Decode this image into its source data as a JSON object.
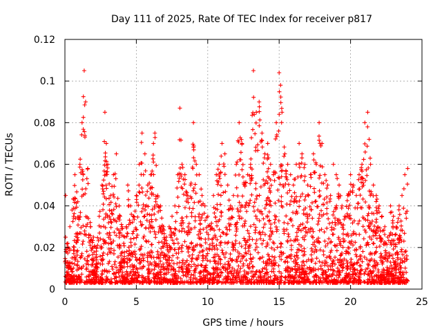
{
  "chart_data": {
    "type": "scatter",
    "title": "Day 111 of 2025, Rate Of TEC Index for receiver p817",
    "xlabel": "GPS time / hours",
    "ylabel": "ROTI / TECUs",
    "xlim": [
      0,
      25
    ],
    "ylim": [
      0,
      0.12
    ],
    "x_ticks": [
      "0",
      "5",
      "10",
      "15",
      "20",
      "25"
    ],
    "y_ticks": [
      "0",
      "0.02",
      "0.04",
      "0.06",
      "0.08",
      "0.1",
      "0.12"
    ],
    "grid": true,
    "marker": "+",
    "color": "#ff0000",
    "points_x": [
      0.05,
      0.2,
      0.35,
      0.5,
      0.7,
      0.9,
      1.05,
      1.2,
      1.35,
      1.45,
      1.6,
      1.8,
      2.0,
      2.2,
      2.4,
      2.6,
      2.8,
      2.9,
      3.0,
      3.2,
      3.4,
      3.6,
      3.8,
      4.0,
      4.2,
      4.4,
      4.6,
      4.8,
      5.0,
      5.2,
      5.4,
      5.5,
      5.6,
      5.8,
      6.0,
      6.2,
      6.3,
      6.5,
      6.7,
      6.9,
      7.1,
      7.3,
      7.5,
      7.7,
      7.9,
      8.05,
      8.2,
      8.4,
      8.6,
      8.8,
      9.0,
      9.2,
      9.4,
      9.6,
      9.8,
      10.0,
      10.2,
      10.4,
      10.6,
      10.8,
      11.0,
      11.2,
      11.4,
      11.6,
      11.8,
      12.0,
      12.2,
      12.4,
      12.6,
      12.8,
      13.0,
      13.2,
      13.4,
      13.6,
      13.8,
      14.0,
      14.2,
      14.4,
      14.6,
      14.8,
      15.0,
      15.1,
      15.2,
      15.4,
      15.6,
      15.8,
      16.0,
      16.2,
      16.4,
      16.6,
      16.8,
      17.0,
      17.2,
      17.4,
      17.6,
      17.8,
      18.0,
      18.2,
      18.4,
      18.6,
      18.8,
      19.0,
      19.2,
      19.4,
      19.6,
      19.8,
      20.0,
      20.2,
      20.4,
      20.6,
      20.8,
      21.0,
      21.2,
      21.3,
      21.4,
      21.6,
      21.8,
      22.0,
      22.2,
      22.4,
      22.6,
      22.8,
      23.0,
      23.2,
      23.4,
      23.6,
      23.8,
      24.0
    ],
    "points_y": [
      0.045,
      0.022,
      0.03,
      0.038,
      0.055,
      0.042,
      0.06,
      0.08,
      0.105,
      0.09,
      0.058,
      0.03,
      0.025,
      0.02,
      0.035,
      0.05,
      0.085,
      0.07,
      0.06,
      0.045,
      0.055,
      0.065,
      0.04,
      0.03,
      0.025,
      0.05,
      0.04,
      0.035,
      0.045,
      0.06,
      0.075,
      0.055,
      0.065,
      0.05,
      0.055,
      0.07,
      0.075,
      0.045,
      0.04,
      0.03,
      0.025,
      0.03,
      0.035,
      0.04,
      0.055,
      0.087,
      0.06,
      0.055,
      0.045,
      0.05,
      0.08,
      0.06,
      0.055,
      0.045,
      0.04,
      0.035,
      0.03,
      0.045,
      0.055,
      0.06,
      0.07,
      0.065,
      0.05,
      0.04,
      0.045,
      0.06,
      0.08,
      0.07,
      0.05,
      0.055,
      0.06,
      0.105,
      0.085,
      0.09,
      0.075,
      0.065,
      0.07,
      0.06,
      0.055,
      0.08,
      0.104,
      0.098,
      0.085,
      0.065,
      0.06,
      0.055,
      0.05,
      0.06,
      0.07,
      0.065,
      0.06,
      0.05,
      0.055,
      0.065,
      0.06,
      0.08,
      0.07,
      0.055,
      0.05,
      0.045,
      0.06,
      0.055,
      0.05,
      0.04,
      0.035,
      0.045,
      0.055,
      0.05,
      0.045,
      0.055,
      0.06,
      0.08,
      0.085,
      0.072,
      0.06,
      0.05,
      0.045,
      0.04,
      0.035,
      0.03,
      0.025,
      0.04,
      0.035,
      0.03,
      0.04,
      0.045,
      0.055,
      0.058
    ]
  }
}
